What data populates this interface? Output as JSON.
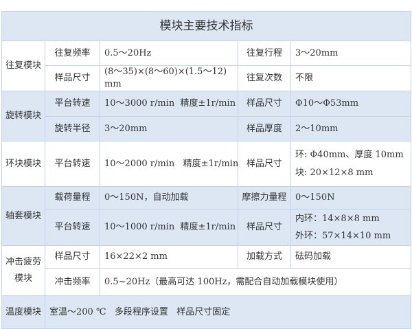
{
  "title": "模块主要技术指标",
  "reciprocating": {
    "module": "往复模块",
    "rows": [
      {
        "label1": "往复频率",
        "value1": "0.5～20Hz",
        "label2": "往复行程",
        "value2": "3～20mm"
      },
      {
        "label1": "样品尺寸",
        "value1": "(8～35)×(8～60)×(1.5～12) mm",
        "label2": "往复次数",
        "value2": "不限"
      }
    ]
  },
  "rotating": {
    "module": "旋转模块",
    "rows": [
      {
        "label1": "平台转速",
        "value1": "10～3000 r/min  精度±1r/min",
        "label2": "样品尺寸",
        "value2": "Φ10～Φ53mm"
      },
      {
        "label1": "旋转半径",
        "value1": "3～20mm",
        "label2": "样品厚度",
        "value2": "2～10mm"
      }
    ]
  },
  "ring_block": {
    "module": "环块模块",
    "label1": "平台转速",
    "value1": "10～2000 r/min   精度±1r/min",
    "label2": "样品尺寸",
    "value2_line1": "环: Φ40mm、厚度 10mm",
    "value2_line2": "块: 20×12×8 mm"
  },
  "bearing": {
    "module": "轴套模块",
    "rows": [
      {
        "label1": "载荷量程",
        "value1": "0～150N，自动加载",
        "label2": "摩擦力量程",
        "value2": "0～150N"
      },
      {
        "label1": "平台转速",
        "value1": "10～1000 r/min  精度±1r/min",
        "label2": "样品尺寸",
        "value2_line1": "内环：14×8×8 mm",
        "value2_line2": "外环：57×14×10 mm"
      }
    ]
  },
  "impact": {
    "module_line1": "冲击疲劳",
    "module_line2": "模块",
    "rows": [
      {
        "label1": "样品尺寸",
        "value1": "16×22×2 mm",
        "label2": "加载方式",
        "value2": "砝码加载"
      },
      {
        "label1": "冲击频率",
        "value1": "0.5~20Hz（最高可达 100Hz，需配合自动加载模块使用）"
      }
    ]
  },
  "temperature": {
    "module": "温度模块",
    "value": "室温～200 ℃   多段程序设置   样品尺寸固定"
  }
}
